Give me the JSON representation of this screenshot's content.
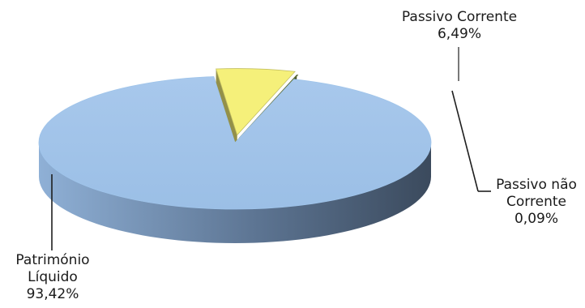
{
  "chart_data": {
    "type": "pie",
    "variant": "3d-exploded",
    "title": "",
    "slices": [
      {
        "label": "Património Líquido",
        "label_lines": [
          "Património",
          "Líquido"
        ],
        "value": 93.42,
        "value_text": "93,42%",
        "color": "#9dc3e6"
      },
      {
        "label": "Passivo Corrente",
        "label_lines": [
          "Passivo Corrente"
        ],
        "value": 6.49,
        "value_text": "6,49%",
        "color": "#f5f07a"
      },
      {
        "label": "Passivo não Corrente",
        "label_lines": [
          "Passivo não",
          "Corrente"
        ],
        "value": 0.09,
        "value_text": "0,09%",
        "color": "#6b7f3c"
      }
    ],
    "legend": "none"
  }
}
